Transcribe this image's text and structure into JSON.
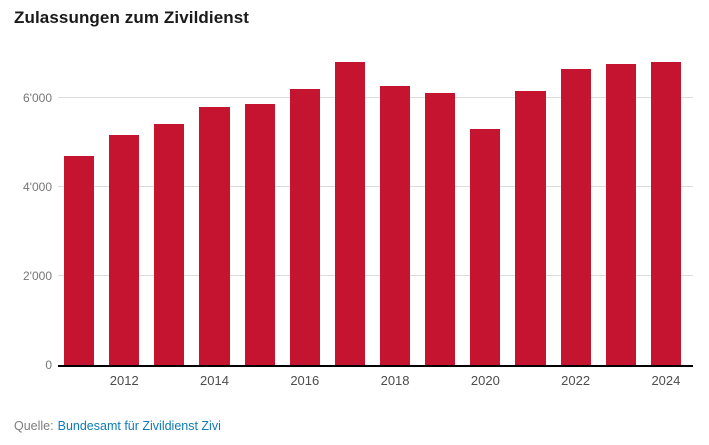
{
  "title": "Zulassungen zum Zivildienst",
  "source": {
    "prefix": "Quelle:",
    "link_text": "Bundesamt für Zivildienst Zivi"
  },
  "colors": {
    "bar": "#c41430",
    "link": "#0f7ab5"
  },
  "chart_data": {
    "type": "bar",
    "title": "Zulassungen zum Zivildienst",
    "categories": [
      2011,
      2012,
      2013,
      2014,
      2015,
      2016,
      2017,
      2018,
      2019,
      2020,
      2021,
      2022,
      2023,
      2024
    ],
    "values": [
      4700,
      5150,
      5400,
      5800,
      5850,
      6200,
      6800,
      6250,
      6100,
      5300,
      6150,
      6650,
      6750,
      6800
    ],
    "xlabel": "",
    "ylabel": "",
    "ylim": [
      0,
      7000
    ],
    "yticks": [
      0,
      2000,
      4000,
      6000
    ],
    "ytick_labels": [
      "0",
      "2'000",
      "4'000",
      "6'000"
    ],
    "xtick_labels": [
      "2012",
      "2014",
      "2016",
      "2018",
      "2020",
      "2022",
      "2024"
    ],
    "grid": true,
    "legend_position": "none",
    "bar_color": "#c41430"
  }
}
